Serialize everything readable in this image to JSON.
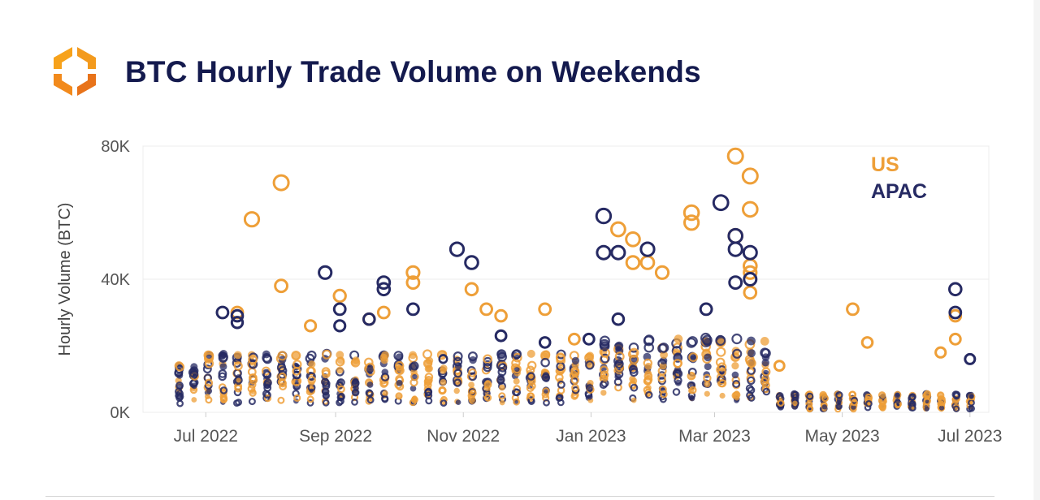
{
  "header": {
    "title": "BTC Hourly Trade Volume on Weekends",
    "logo_icon": "hexagon-arrows-logo-icon",
    "logo_colors": [
      "#f7a21b",
      "#e8731a"
    ]
  },
  "colors": {
    "us": "#ee9f38",
    "apac": "#262a63",
    "title": "#141a4e",
    "grid": "#ececec"
  },
  "chart_data": {
    "type": "scatter",
    "title": "BTC Hourly Trade Volume on Weekends",
    "xlabel": "",
    "ylabel": "Hourly Volume (BTC)",
    "x_ticks": [
      "Jul 2022",
      "Sep 2022",
      "Nov 2022",
      "Jan 2023",
      "Mar 2023",
      "May 2023",
      "Jul 2023"
    ],
    "x_range": [
      "2022-06-01",
      "2023-07-10"
    ],
    "y_ticks": [
      {
        "value": 0,
        "label": "0K"
      },
      {
        "value": 40000,
        "label": "40K"
      },
      {
        "value": 80000,
        "label": "80K"
      }
    ],
    "ylim": [
      0,
      80000
    ],
    "grid": true,
    "legend": {
      "placement": "top-right",
      "entries": [
        "US",
        "APAC"
      ]
    },
    "series": [
      {
        "name": "US",
        "color": "#ee9f38",
        "points": [
          [
            "2022-07-23",
            58000
          ],
          [
            "2022-08-06",
            69000
          ],
          [
            "2022-08-06",
            38000
          ],
          [
            "2022-08-20",
            26000
          ],
          [
            "2022-09-17",
            28000
          ],
          [
            "2022-09-24",
            30000
          ],
          [
            "2022-10-08",
            42000
          ],
          [
            "2022-10-08",
            39000
          ],
          [
            "2022-11-05",
            37000
          ],
          [
            "2022-11-12",
            31000
          ],
          [
            "2022-11-19",
            29000
          ],
          [
            "2022-12-10",
            31000
          ],
          [
            "2023-01-14",
            55000
          ],
          [
            "2023-01-21",
            52000
          ],
          [
            "2023-01-21",
            45000
          ],
          [
            "2023-01-28",
            45000
          ],
          [
            "2023-02-04",
            42000
          ],
          [
            "2023-02-18",
            60000
          ],
          [
            "2023-02-18",
            57000
          ],
          [
            "2023-03-11",
            77000
          ],
          [
            "2023-03-18",
            71000
          ],
          [
            "2023-03-18",
            61000
          ],
          [
            "2023-03-11",
            53000
          ],
          [
            "2023-03-18",
            44000
          ],
          [
            "2023-03-18",
            42000
          ],
          [
            "2023-03-18",
            36000
          ],
          [
            "2023-05-06",
            31000
          ],
          [
            "2023-05-13",
            21000
          ],
          [
            "2023-06-17",
            18000
          ],
          [
            "2023-06-24",
            29000
          ],
          [
            "2023-06-24",
            22000
          ],
          [
            "2022-07-16",
            30000
          ],
          [
            "2022-09-03",
            35000
          ],
          [
            "2022-12-24",
            22000
          ],
          [
            "2023-04-01",
            14000
          ]
        ]
      },
      {
        "name": "APAC",
        "color": "#262a63",
        "points": [
          [
            "2022-07-09",
            30000
          ],
          [
            "2022-07-16",
            29000
          ],
          [
            "2022-07-16",
            27000
          ],
          [
            "2022-08-27",
            42000
          ],
          [
            "2022-09-03",
            31000
          ],
          [
            "2022-09-03",
            26000
          ],
          [
            "2022-09-17",
            28000
          ],
          [
            "2022-09-24",
            37000
          ],
          [
            "2022-09-24",
            39000
          ],
          [
            "2022-10-08",
            31000
          ],
          [
            "2022-10-29",
            49000
          ],
          [
            "2022-11-05",
            45000
          ],
          [
            "2022-11-19",
            23000
          ],
          [
            "2022-12-10",
            21000
          ],
          [
            "2022-12-31",
            22000
          ],
          [
            "2023-01-07",
            59000
          ],
          [
            "2023-01-07",
            48000
          ],
          [
            "2023-01-14",
            48000
          ],
          [
            "2023-01-28",
            49000
          ],
          [
            "2023-02-25",
            31000
          ],
          [
            "2023-03-04",
            63000
          ],
          [
            "2023-03-11",
            53000
          ],
          [
            "2023-03-11",
            49000
          ],
          [
            "2023-03-18",
            48000
          ],
          [
            "2023-03-11",
            39000
          ],
          [
            "2023-03-18",
            40000
          ],
          [
            "2023-06-24",
            37000
          ],
          [
            "2023-06-24",
            30000
          ],
          [
            "2023-07-01",
            16000
          ],
          [
            "2023-01-14",
            28000
          ]
        ]
      }
    ]
  }
}
